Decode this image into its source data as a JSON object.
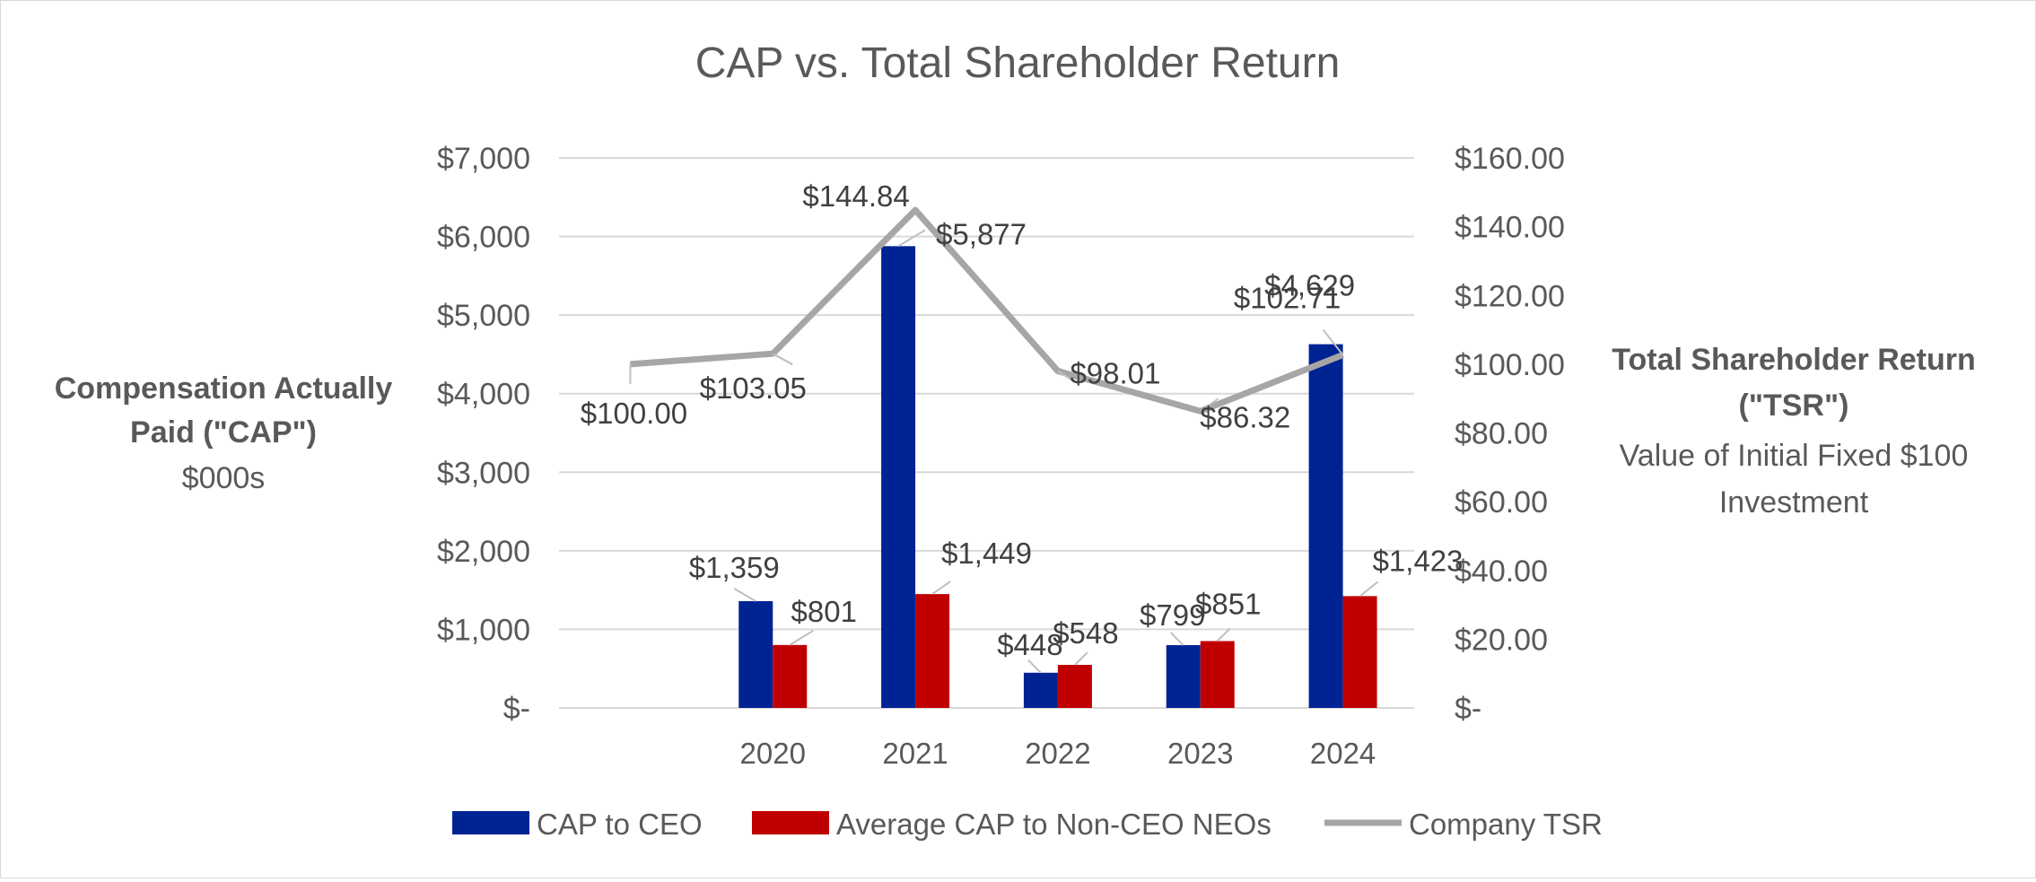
{
  "chart_data": {
    "type": "bar",
    "title": "CAP vs. Total Shareholder Return",
    "categories": [
      "2020",
      "2021",
      "2022",
      "2023",
      "2024"
    ],
    "series": [
      {
        "name": "CAP to CEO",
        "kind": "bar",
        "axis": "left",
        "color": "#002394",
        "values": [
          1359,
          5877,
          448,
          799,
          4629
        ],
        "labels": [
          "$1,359",
          "$5,877",
          "$448",
          "$799",
          "$4,629"
        ]
      },
      {
        "name": "Average CAP to Non-CEO NEOs",
        "kind": "bar",
        "axis": "left",
        "color": "#c00000",
        "values": [
          801,
          1449,
          548,
          851,
          1423
        ],
        "labels": [
          "$801",
          "$1,449",
          "$548",
          "$851",
          "$1,423"
        ]
      },
      {
        "name": "Company TSR",
        "kind": "line",
        "axis": "right",
        "color": "#a6a6a6",
        "x": [
          "",
          "2020",
          "2021",
          "2022",
          "2023",
          "2024"
        ],
        "values": [
          100.0,
          103.05,
          144.84,
          98.01,
          86.32,
          102.71
        ],
        "labels": [
          "$100.00",
          "$103.05",
          "$144.84",
          "$98.01",
          "$86.32",
          "$102.71"
        ]
      }
    ],
    "y_left": {
      "title_lines": [
        "Compensation Actually",
        "Paid (\"CAP\")"
      ],
      "subtitle": "$000s",
      "ylim": [
        0,
        7000
      ],
      "ticks": [
        "$-",
        "$1,000",
        "$2,000",
        "$3,000",
        "$4,000",
        "$5,000",
        "$6,000",
        "$7,000"
      ]
    },
    "y_right": {
      "title_lines": [
        "Total Shareholder Return",
        "(\"TSR\")"
      ],
      "subtitle_lines": [
        "Value of Initial Fixed $100",
        "Investment"
      ],
      "ylim": [
        0,
        160
      ],
      "ticks": [
        "$-",
        "$20.00",
        "$40.00",
        "$60.00",
        "$80.00",
        "$100.00",
        "$120.00",
        "$140.00",
        "$160.00"
      ]
    },
    "grid": true,
    "legend_position": "bottom"
  }
}
